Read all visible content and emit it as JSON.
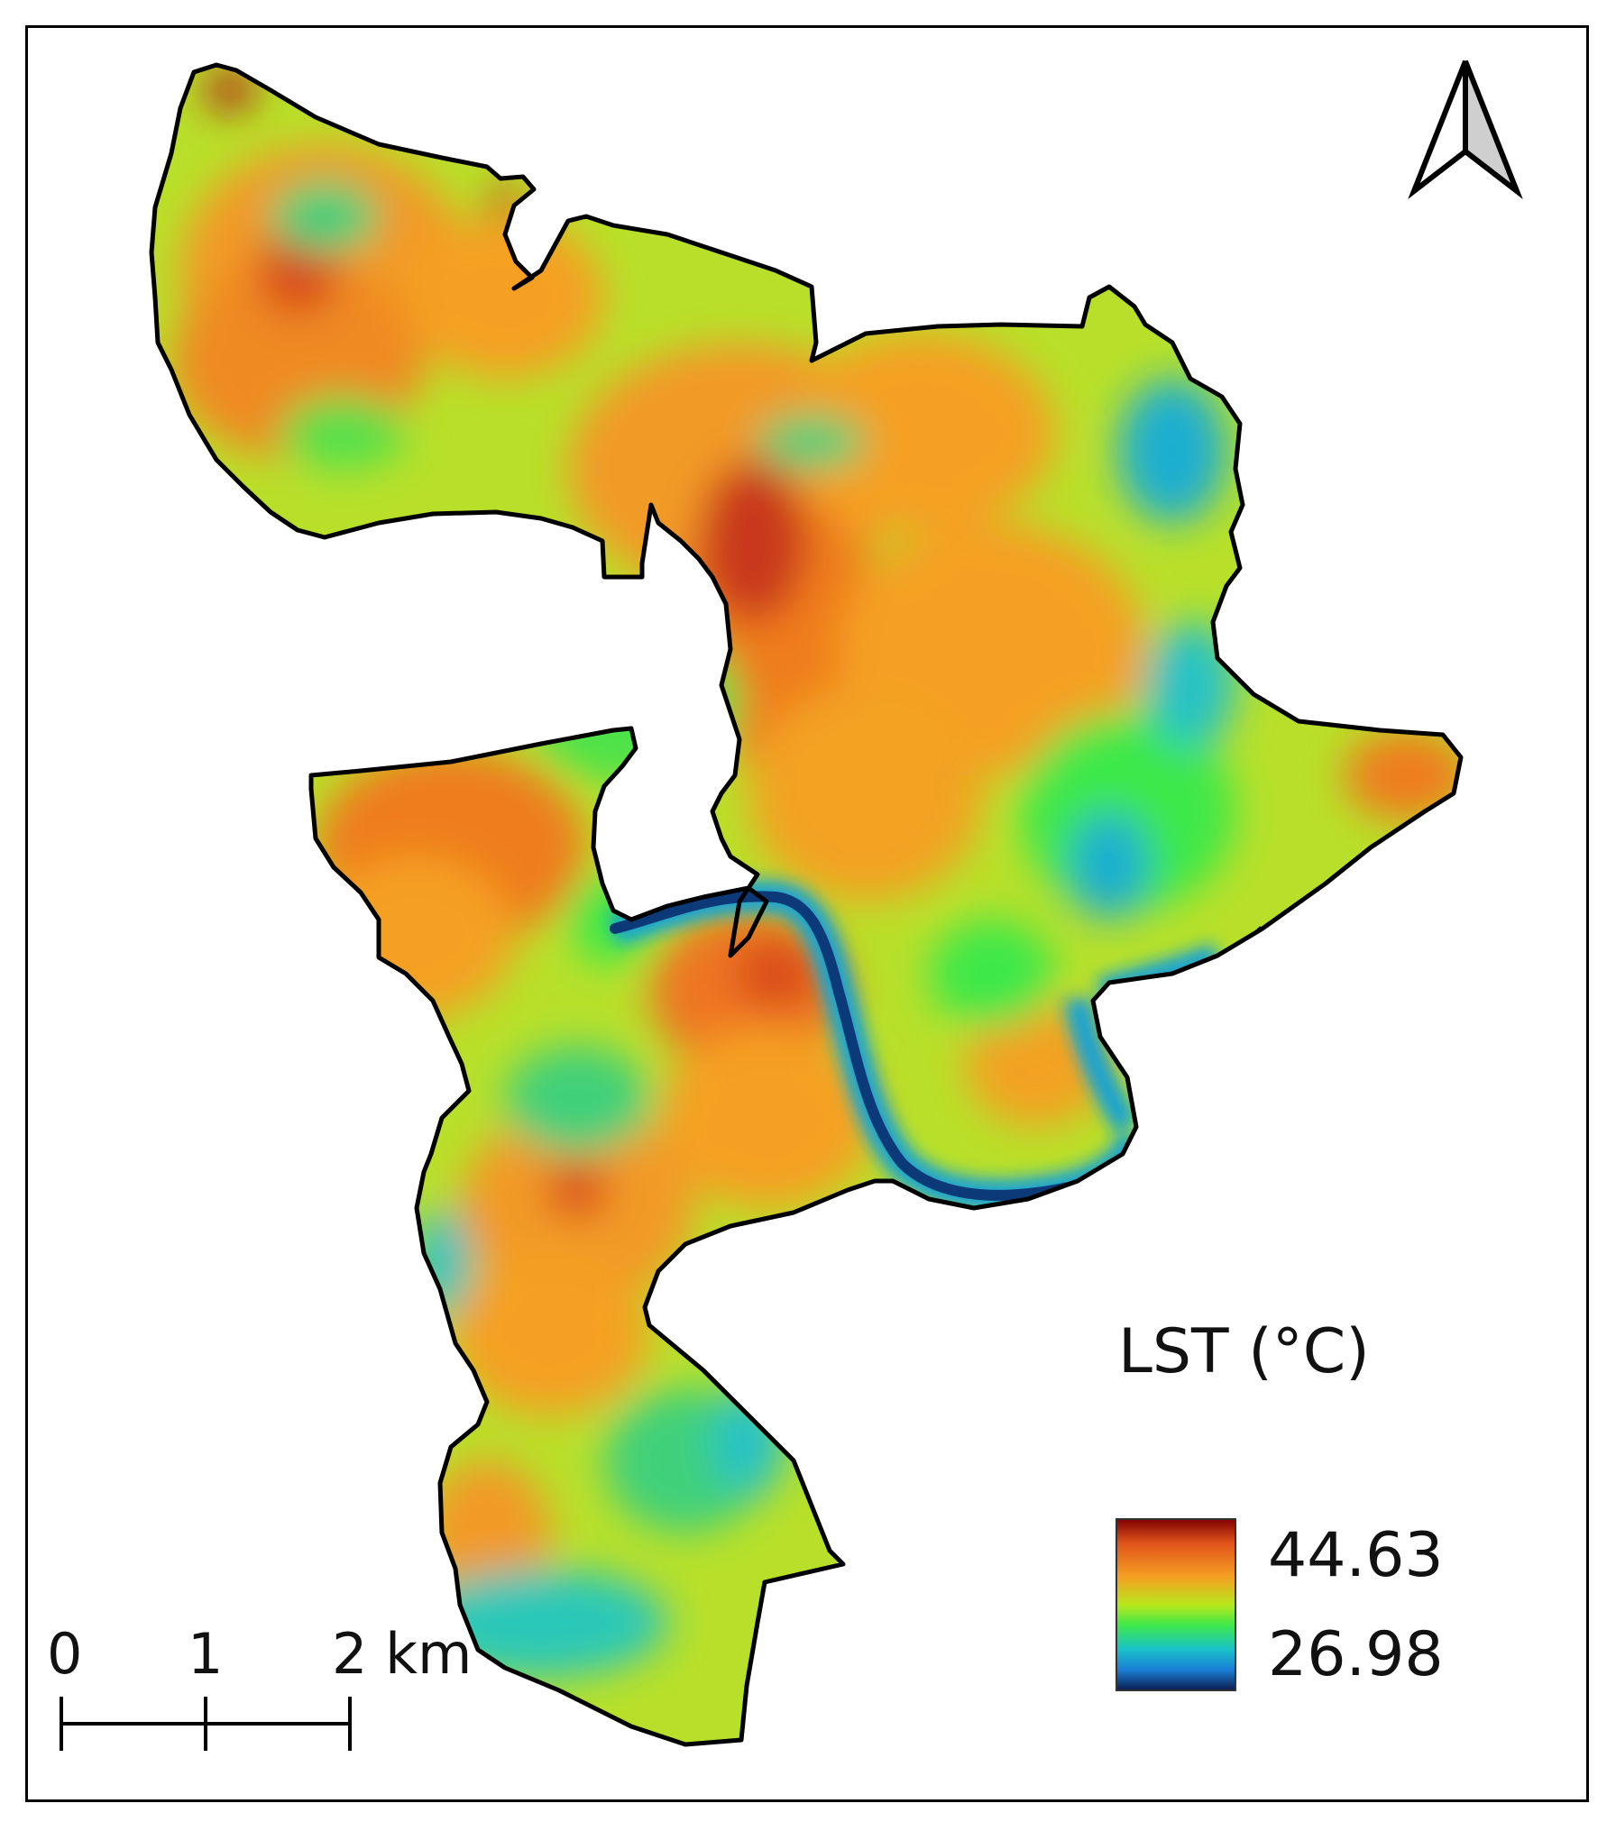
{
  "legend": {
    "title": "LST (°C)",
    "max_label": "44.63",
    "min_label": "26.98",
    "max_value": 44.63,
    "min_value": 26.98,
    "ramp_colors": [
      "#7f0000",
      "#e0531a",
      "#f5a023",
      "#b8e81c",
      "#3ee84a",
      "#19c2c9",
      "#1a7ed6",
      "#0a1d4f"
    ]
  },
  "scale_bar": {
    "labels": [
      "0",
      "1",
      "2 km"
    ]
  },
  "north_arrow": {
    "icon": "north-arrow-icon"
  },
  "map_colors": {
    "hot": "#e0531a",
    "warm": "#f5a023",
    "mid": "#9fe82a",
    "cool": "#2fdc6a",
    "cold": "#18a9d6",
    "water": "#0c3a78"
  }
}
